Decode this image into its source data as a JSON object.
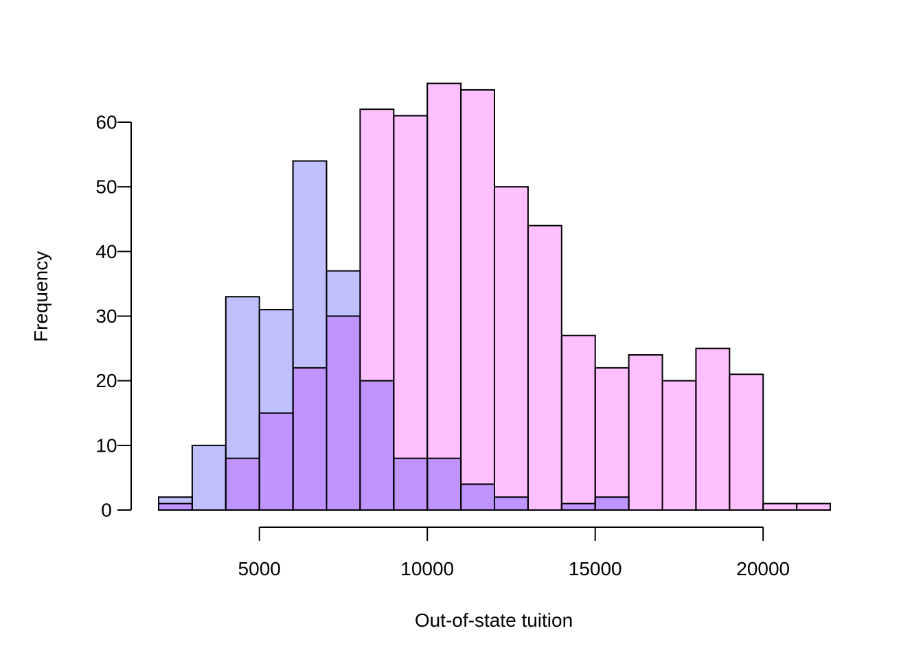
{
  "chart_data": {
    "type": "bar",
    "subtype": "overlapping-histogram",
    "title": "",
    "xlabel": "Out-of-state tuition",
    "ylabel": "Frequency",
    "bin_width": 1000,
    "xlim": [
      2000,
      22000
    ],
    "ylim": [
      0,
      66
    ],
    "x_ticks": [
      5000,
      10000,
      15000,
      20000
    ],
    "y_ticks": [
      0,
      10,
      20,
      30,
      40,
      50,
      60
    ],
    "grid": false,
    "legend": "none",
    "overlap_color": "#bf94ff",
    "series": [
      {
        "color": "#c0c0ff",
        "bins": [
          {
            "start": 2000,
            "end": 3000,
            "count": 2
          },
          {
            "start": 3000,
            "end": 4000,
            "count": 10
          },
          {
            "start": 4000,
            "end": 5000,
            "count": 33
          },
          {
            "start": 5000,
            "end": 6000,
            "count": 31
          },
          {
            "start": 6000,
            "end": 7000,
            "count": 54
          },
          {
            "start": 7000,
            "end": 8000,
            "count": 37
          },
          {
            "start": 8000,
            "end": 9000,
            "count": 20
          },
          {
            "start": 9000,
            "end": 10000,
            "count": 8
          },
          {
            "start": 10000,
            "end": 11000,
            "count": 8
          },
          {
            "start": 11000,
            "end": 12000,
            "count": 4
          },
          {
            "start": 12000,
            "end": 13000,
            "count": 2
          },
          {
            "start": 14000,
            "end": 15000,
            "count": 1
          },
          {
            "start": 15000,
            "end": 16000,
            "count": 2
          }
        ]
      },
      {
        "color": "#ffc0ff",
        "bins": [
          {
            "start": 2000,
            "end": 3000,
            "count": 1
          },
          {
            "start": 4000,
            "end": 5000,
            "count": 8
          },
          {
            "start": 5000,
            "end": 6000,
            "count": 15
          },
          {
            "start": 6000,
            "end": 7000,
            "count": 22
          },
          {
            "start": 7000,
            "end": 8000,
            "count": 30
          },
          {
            "start": 8000,
            "end": 9000,
            "count": 62
          },
          {
            "start": 9000,
            "end": 10000,
            "count": 61
          },
          {
            "start": 10000,
            "end": 11000,
            "count": 66
          },
          {
            "start": 11000,
            "end": 12000,
            "count": 65
          },
          {
            "start": 12000,
            "end": 13000,
            "count": 50
          },
          {
            "start": 13000,
            "end": 14000,
            "count": 44
          },
          {
            "start": 14000,
            "end": 15000,
            "count": 27
          },
          {
            "start": 15000,
            "end": 16000,
            "count": 22
          },
          {
            "start": 16000,
            "end": 17000,
            "count": 24
          },
          {
            "start": 17000,
            "end": 18000,
            "count": 20
          },
          {
            "start": 18000,
            "end": 19000,
            "count": 25
          },
          {
            "start": 19000,
            "end": 20000,
            "count": 21
          },
          {
            "start": 20000,
            "end": 21000,
            "count": 1
          },
          {
            "start": 21000,
            "end": 22000,
            "count": 1
          }
        ]
      }
    ]
  }
}
